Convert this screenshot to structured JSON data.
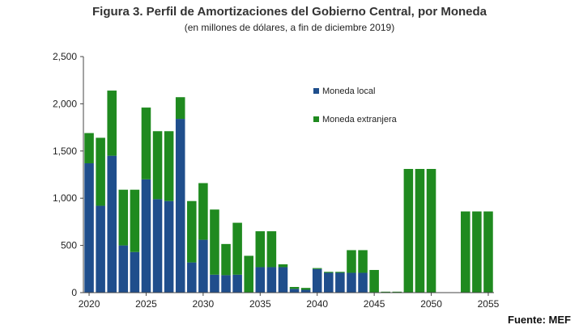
{
  "chart_data": {
    "type": "bar",
    "stacked": true,
    "title": "Figura 3. Perfil de Amortizaciones del Gobierno Central, por Moneda",
    "subtitle": "(en millones de dólares, a fin de diciembre 2019)",
    "xlabel": "",
    "ylabel": "",
    "ylim": [
      0,
      2500
    ],
    "yticks": [
      0,
      500,
      1000,
      1500,
      2000,
      2500
    ],
    "ytick_labels": [
      "0",
      "500",
      "1,000",
      "1,500",
      "2,000",
      "2,500"
    ],
    "xtick_labels": [
      "2020",
      "2025",
      "2030",
      "2035",
      "2040",
      "2045",
      "2050",
      "2055"
    ],
    "categories": [
      2020,
      2021,
      2022,
      2023,
      2024,
      2025,
      2026,
      2027,
      2028,
      2029,
      2030,
      2031,
      2032,
      2033,
      2034,
      2035,
      2036,
      2037,
      2038,
      2039,
      2040,
      2041,
      2042,
      2043,
      2044,
      2045,
      2046,
      2047,
      2048,
      2049,
      2050,
      2051,
      2052,
      2053,
      2054,
      2055
    ],
    "series": [
      {
        "name": "Moneda local",
        "color": "#1f4e8c",
        "values": [
          1370,
          920,
          1450,
          500,
          430,
          1200,
          990,
          970,
          1840,
          320,
          560,
          190,
          185,
          190,
          0,
          270,
          270,
          270,
          40,
          30,
          250,
          210,
          210,
          210,
          210,
          0,
          0,
          0,
          0,
          0,
          0,
          0,
          0,
          0,
          0,
          0
        ]
      },
      {
        "name": "Moneda extranjera",
        "color": "#1f8a1f",
        "values": [
          320,
          720,
          690,
          590,
          660,
          760,
          720,
          740,
          230,
          650,
          600,
          690,
          330,
          550,
          390,
          380,
          380,
          30,
          20,
          20,
          10,
          10,
          10,
          240,
          240,
          240,
          10,
          10,
          1310,
          1310,
          1310,
          0,
          0,
          860,
          860,
          860
        ]
      }
    ],
    "legend_position": "top-right"
  },
  "source_label": "Fuente: MEF"
}
